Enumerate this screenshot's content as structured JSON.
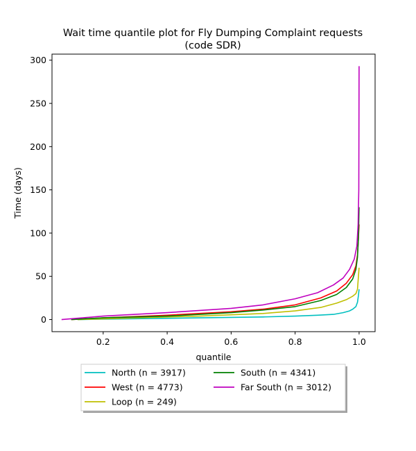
{
  "chart_data": {
    "type": "line",
    "title": "Wait time quantile plot for Fly Dumping Complaint  requests",
    "subtitle": "(code SDR)",
    "xlabel": "quantile",
    "ylabel": "Time (days)",
    "xlim": [
      0.04,
      1.05
    ],
    "ylim": [
      -14,
      307
    ],
    "xticks": [
      0.2,
      0.4,
      0.6,
      0.8,
      1.0
    ],
    "xtick_labels": [
      "0.2",
      "0.4",
      "0.6",
      "0.8",
      "1.0"
    ],
    "yticks": [
      0,
      50,
      100,
      150,
      200,
      250,
      300
    ],
    "ytick_labels": [
      "0",
      "50",
      "100",
      "150",
      "200",
      "250",
      "300"
    ],
    "grid": false,
    "legend_position": "below",
    "series": [
      {
        "name": "North (n = 3917)",
        "color": "#00bfbf",
        "x": [
          0.12,
          0.3,
          0.5,
          0.7,
          0.8,
          0.87,
          0.92,
          0.95,
          0.97,
          0.98,
          0.99,
          0.995,
          0.998,
          1.0
        ],
        "y": [
          0,
          1,
          2,
          3,
          4,
          5,
          6,
          8,
          10,
          12,
          15,
          20,
          28,
          35
        ]
      },
      {
        "name": "West (n = 4773)",
        "color": "#ff0000",
        "x": [
          0.1,
          0.2,
          0.4,
          0.6,
          0.7,
          0.8,
          0.88,
          0.93,
          0.96,
          0.98,
          0.99,
          0.995,
          0.998,
          1.0
        ],
        "y": [
          0,
          2,
          5,
          9,
          12,
          17,
          25,
          33,
          42,
          52,
          62,
          75,
          95,
          110
        ]
      },
      {
        "name": "Loop (n = 249)",
        "color": "#bfbf00",
        "x": [
          0.12,
          0.3,
          0.5,
          0.7,
          0.8,
          0.88,
          0.93,
          0.96,
          0.98,
          0.99,
          0.995,
          1.0
        ],
        "y": [
          0,
          2,
          4,
          7,
          10,
          14,
          19,
          23,
          27,
          30,
          35,
          60
        ]
      },
      {
        "name": "South (n = 4341)",
        "color": "#008000",
        "x": [
          0.1,
          0.2,
          0.4,
          0.6,
          0.7,
          0.8,
          0.88,
          0.93,
          0.96,
          0.98,
          0.99,
          0.995,
          0.998,
          1.0
        ],
        "y": [
          0,
          2,
          4,
          8,
          11,
          15,
          22,
          29,
          37,
          47,
          58,
          72,
          95,
          130
        ]
      },
      {
        "name": "Far South (n = 3012)",
        "color": "#bf00bf",
        "x": [
          0.07,
          0.2,
          0.4,
          0.6,
          0.7,
          0.8,
          0.87,
          0.92,
          0.95,
          0.97,
          0.985,
          0.993,
          0.997,
          0.999,
          1.0
        ],
        "y": [
          0,
          4,
          8,
          13,
          17,
          24,
          31,
          40,
          48,
          58,
          70,
          85,
          110,
          150,
          293
        ]
      }
    ]
  }
}
